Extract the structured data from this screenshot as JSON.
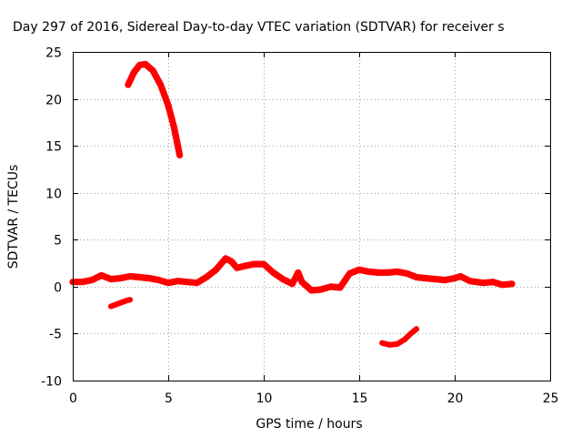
{
  "chart_data": {
    "type": "scatter",
    "title": "Day 297 of 2016, Sidereal Day-to-day VTEC variation (SDTVAR) for receiver s",
    "xlabel": "GPS time / hours",
    "ylabel": "SDTVAR / TECUs",
    "xlim": [
      0,
      25
    ],
    "ylim": [
      -10,
      25
    ],
    "xticks": [
      0,
      5,
      10,
      15,
      20,
      25
    ],
    "yticks": [
      -10,
      -5,
      0,
      5,
      10,
      15,
      20,
      25
    ],
    "xtick_labels": [
      "0",
      "5",
      "10",
      "15",
      "20",
      "25"
    ],
    "ytick_labels": [
      "-10",
      "-5",
      "0",
      "5",
      "10",
      "15",
      "20",
      "25"
    ],
    "grid": true,
    "legend": "none",
    "series": [
      {
        "color": "#ff0000",
        "band": 0.35,
        "points": [
          [
            0.0,
            0.5
          ],
          [
            0.5,
            0.5
          ],
          [
            1.0,
            0.7
          ],
          [
            1.5,
            1.2
          ],
          [
            2.0,
            0.8
          ],
          [
            2.5,
            0.9
          ],
          [
            3.0,
            1.1
          ],
          [
            3.5,
            1.0
          ],
          [
            4.0,
            0.9
          ],
          [
            4.5,
            0.7
          ],
          [
            5.0,
            0.4
          ],
          [
            5.5,
            0.6
          ],
          [
            6.0,
            0.5
          ],
          [
            6.5,
            0.4
          ],
          [
            7.0,
            1.0
          ],
          [
            7.5,
            1.8
          ],
          [
            8.0,
            3.0
          ],
          [
            8.3,
            2.7
          ],
          [
            8.6,
            2.0
          ],
          [
            9.0,
            2.2
          ],
          [
            9.5,
            2.4
          ],
          [
            10.0,
            2.4
          ],
          [
            10.5,
            1.5
          ],
          [
            11.0,
            0.8
          ],
          [
            11.5,
            0.3
          ],
          [
            11.8,
            1.5
          ],
          [
            12.0,
            0.5
          ],
          [
            12.5,
            -0.4
          ],
          [
            13.0,
            -0.3
          ],
          [
            13.5,
            0.0
          ],
          [
            14.0,
            -0.1
          ],
          [
            14.5,
            1.4
          ],
          [
            15.0,
            1.8
          ],
          [
            15.5,
            1.6
          ],
          [
            16.0,
            1.5
          ],
          [
            16.5,
            1.5
          ],
          [
            17.0,
            1.6
          ],
          [
            17.5,
            1.4
          ],
          [
            18.0,
            1.0
          ],
          [
            18.5,
            0.9
          ],
          [
            19.0,
            0.8
          ],
          [
            19.5,
            0.7
          ],
          [
            20.0,
            0.9
          ],
          [
            20.3,
            1.1
          ],
          [
            20.8,
            0.6
          ],
          [
            21.5,
            0.4
          ],
          [
            22.0,
            0.5
          ],
          [
            22.5,
            0.2
          ],
          [
            23.0,
            0.3
          ]
        ]
      },
      {
        "color": "#ff0000",
        "band": 0.35,
        "points": [
          [
            2.9,
            21.5
          ],
          [
            3.2,
            22.8
          ],
          [
            3.5,
            23.6
          ],
          [
            3.8,
            23.7
          ],
          [
            4.2,
            23.0
          ],
          [
            4.6,
            21.5
          ],
          [
            5.0,
            19.3
          ],
          [
            5.3,
            17.0
          ],
          [
            5.6,
            14.0
          ]
        ]
      },
      {
        "color": "#ff0000",
        "band": 0.3,
        "points": [
          [
            2.0,
            -2.1
          ],
          [
            2.4,
            -1.8
          ],
          [
            2.8,
            -1.5
          ],
          [
            3.0,
            -1.4
          ]
        ]
      },
      {
        "color": "#ff0000",
        "band": 0.3,
        "points": [
          [
            16.2,
            -6.0
          ],
          [
            16.6,
            -6.2
          ],
          [
            17.0,
            -6.1
          ],
          [
            17.4,
            -5.6
          ],
          [
            17.7,
            -5.0
          ],
          [
            18.0,
            -4.5
          ]
        ]
      }
    ]
  }
}
